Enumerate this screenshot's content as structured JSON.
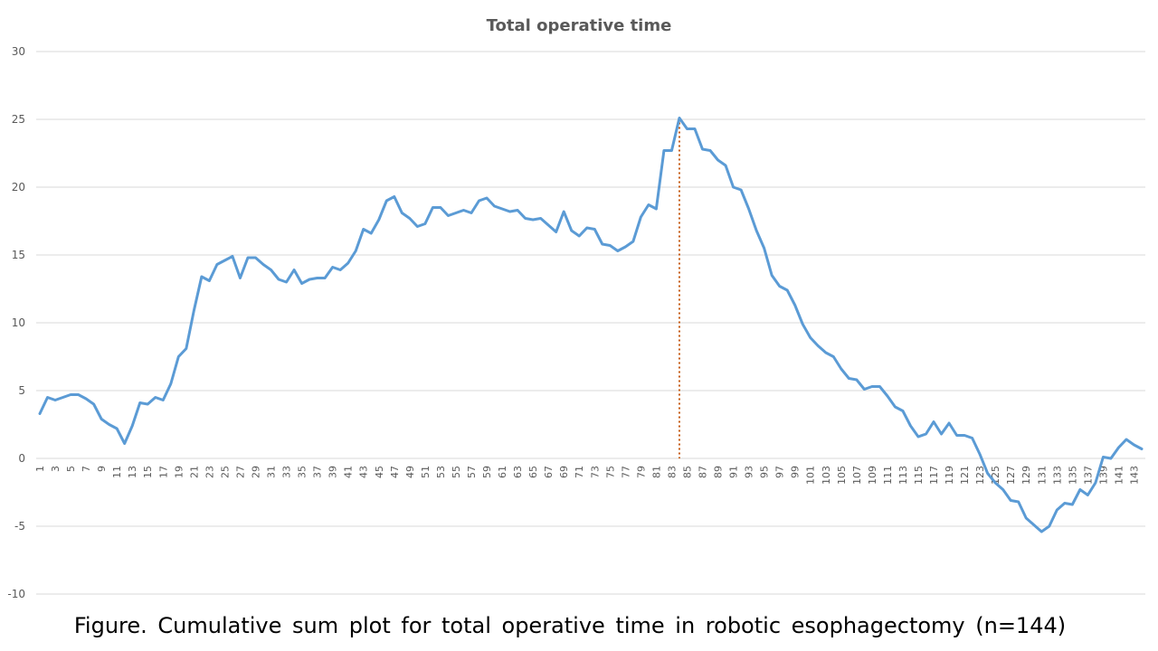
{
  "caption": "Figure. Cumulative sum plot for total operative time in robotic esophagectomy (n=144)",
  "colors": {
    "series": "#5b9bd5",
    "marker": "#c55a11",
    "grid": "#d9d9d9",
    "text": "#595959"
  },
  "chart_data": {
    "type": "line",
    "title": "Total operative time",
    "xlabel": "",
    "ylabel": "",
    "ylim": [
      -10,
      30
    ],
    "yticks": [
      -10,
      -5,
      0,
      5,
      10,
      15,
      20,
      25,
      30
    ],
    "x_tick_labels": [
      "1",
      "3",
      "5",
      "7",
      "9",
      "11",
      "13",
      "15",
      "17",
      "19",
      "21",
      "23",
      "25",
      "27",
      "29",
      "31",
      "33",
      "35",
      "37",
      "39",
      "41",
      "43",
      "45",
      "47",
      "49",
      "51",
      "53",
      "55",
      "57",
      "59",
      "61",
      "63",
      "65",
      "67",
      "69",
      "71",
      "73",
      "75",
      "77",
      "79",
      "81",
      "83",
      "85",
      "87",
      "89",
      "91",
      "93",
      "95",
      "97",
      "99",
      "101",
      "103",
      "105",
      "107",
      "109",
      "111",
      "113",
      "115",
      "117",
      "119",
      "121",
      "123",
      "125",
      "127",
      "129",
      "131",
      "133",
      "135",
      "137",
      "139",
      "141",
      "143"
    ],
    "grid": "horizontal",
    "legend": "none",
    "vertical_marker_at": 84,
    "x": [
      1,
      2,
      3,
      4,
      5,
      6,
      7,
      8,
      9,
      10,
      11,
      12,
      13,
      14,
      15,
      16,
      17,
      18,
      19,
      20,
      21,
      22,
      23,
      24,
      25,
      26,
      27,
      28,
      29,
      30,
      31,
      32,
      33,
      34,
      35,
      36,
      37,
      38,
      39,
      40,
      41,
      42,
      43,
      44,
      45,
      46,
      47,
      48,
      49,
      50,
      51,
      52,
      53,
      54,
      55,
      56,
      57,
      58,
      59,
      60,
      61,
      62,
      63,
      64,
      65,
      66,
      67,
      68,
      69,
      70,
      71,
      72,
      73,
      74,
      75,
      76,
      77,
      78,
      79,
      80,
      81,
      82,
      83,
      84,
      85,
      86,
      87,
      88,
      89,
      90,
      91,
      92,
      93,
      94,
      95,
      96,
      97,
      98,
      99,
      100,
      101,
      102,
      103,
      104,
      105,
      106,
      107,
      108,
      109,
      110,
      111,
      112,
      113,
      114,
      115,
      116,
      117,
      118,
      119,
      120,
      121,
      122,
      123,
      124,
      125,
      126,
      127,
      128,
      129,
      130,
      131,
      132,
      133,
      134,
      135,
      136,
      137,
      138,
      139,
      140,
      141,
      142,
      143,
      144
    ],
    "series": [
      {
        "values": [
          3.3,
          4.5,
          4.3,
          4.5,
          4.7,
          4.7,
          4.4,
          4.0,
          2.9,
          2.5,
          2.2,
          1.1,
          2.4,
          4.1,
          4.0,
          4.5,
          4.3,
          5.5,
          7.5,
          8.1,
          10.9,
          13.4,
          13.1,
          14.3,
          14.6,
          14.9,
          13.3,
          14.8,
          14.8,
          14.3,
          13.9,
          13.2,
          13.0,
          13.9,
          12.9,
          13.2,
          13.3,
          13.3,
          14.1,
          13.9,
          14.4,
          15.3,
          16.9,
          16.6,
          17.6,
          19.0,
          19.3,
          18.1,
          17.7,
          17.1,
          17.3,
          18.5,
          18.5,
          17.9,
          18.1,
          18.3,
          18.1,
          19.0,
          19.2,
          18.6,
          18.4,
          18.2,
          18.3,
          17.7,
          17.6,
          17.7,
          17.2,
          16.7,
          18.2,
          16.8,
          16.4,
          17.0,
          16.9,
          15.8,
          15.7,
          15.3,
          15.6,
          16.0,
          17.8,
          18.7,
          18.4,
          22.7,
          22.7,
          25.1,
          24.3,
          24.3,
          22.8,
          22.7,
          22.0,
          21.6,
          20.0,
          19.8,
          18.4,
          16.8,
          15.5,
          13.5,
          12.7,
          12.4,
          11.3,
          9.9,
          8.9,
          8.3,
          7.8,
          7.5,
          6.6,
          5.9,
          5.8,
          5.1,
          5.3,
          5.3,
          4.6,
          3.8,
          3.5,
          2.4,
          1.6,
          1.8,
          2.7,
          1.8,
          2.6,
          1.7,
          1.7,
          1.5,
          0.3,
          -1.1,
          -1.8,
          -2.3,
          -3.1,
          -3.2,
          -4.4,
          -4.9,
          -5.4,
          -5.0,
          -3.8,
          -3.3,
          -3.4,
          -2.3,
          -2.7,
          -1.8,
          0.1,
          0.0,
          0.8,
          1.4,
          1.0,
          0.7
        ]
      }
    ]
  }
}
